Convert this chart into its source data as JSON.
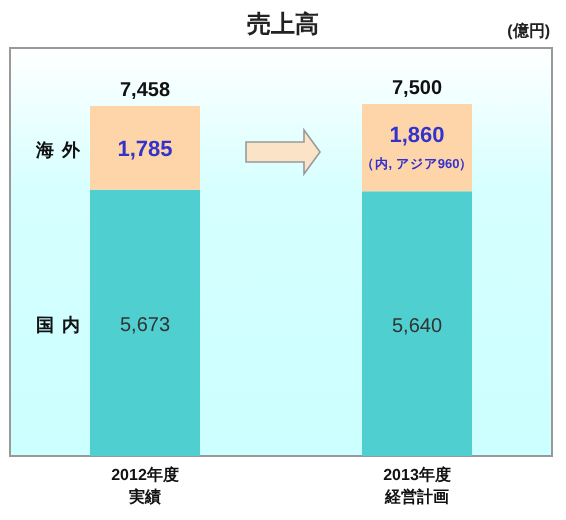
{
  "chart_data": {
    "type": "bar",
    "title": "売上高",
    "ylabel": "(億円)",
    "stacked": true,
    "categories": [
      "2012年度実績",
      "2013年度経営計画"
    ],
    "series": [
      {
        "name": "国内",
        "color": "#4fcfcf",
        "values": [
          5673,
          5640
        ],
        "value_labels": [
          "5,673",
          "5,640"
        ]
      },
      {
        "name": "海外",
        "color": "#fdd5a8",
        "values": [
          1785,
          1860
        ],
        "value_labels": [
          "1,785",
          "1,860"
        ]
      }
    ],
    "totals": [
      "7,458",
      "7,500"
    ],
    "annotations": [
      "（内, アジア960）"
    ]
  }
}
